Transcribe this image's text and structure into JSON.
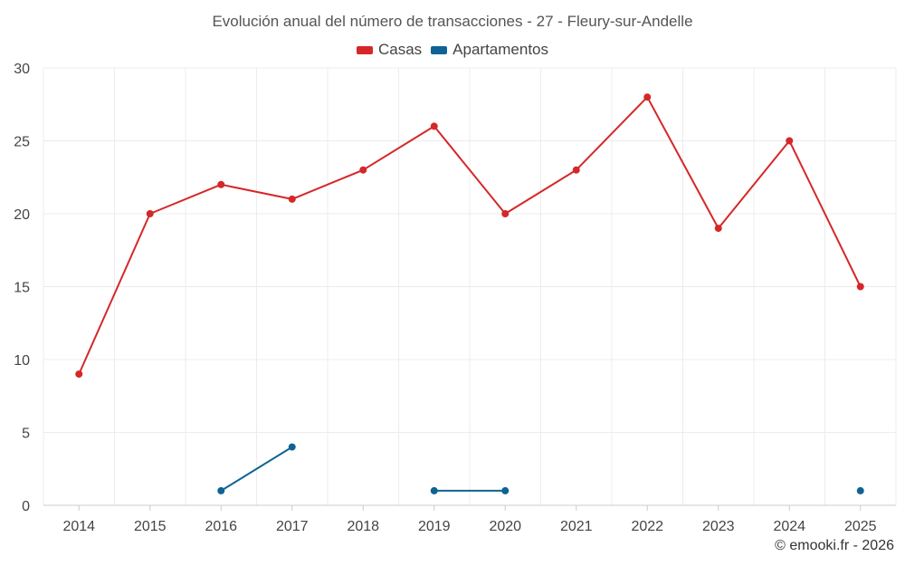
{
  "chart_data": {
    "type": "line",
    "title": "Evolución anual del número de transacciones - 27 - Fleury-sur-Andelle",
    "xlabel": "",
    "ylabel": "",
    "categories": [
      "2014",
      "2015",
      "2016",
      "2017",
      "2018",
      "2019",
      "2020",
      "2021",
      "2022",
      "2023",
      "2024",
      "2025"
    ],
    "ylim": [
      0,
      30
    ],
    "yticks": [
      0,
      5,
      10,
      15,
      20,
      25,
      30
    ],
    "grid": true,
    "legend_position": "top-center",
    "series": [
      {
        "name": "Casas",
        "color": "#d62728",
        "values": [
          9,
          20,
          22,
          21,
          23,
          26,
          20,
          23,
          28,
          19,
          25,
          15
        ]
      },
      {
        "name": "Apartamentos",
        "color": "#0f6394",
        "values": [
          null,
          null,
          1,
          4,
          null,
          1,
          1,
          null,
          null,
          null,
          null,
          1
        ]
      }
    ]
  },
  "footer": {
    "copyright": "© emooki.fr - 2026"
  }
}
